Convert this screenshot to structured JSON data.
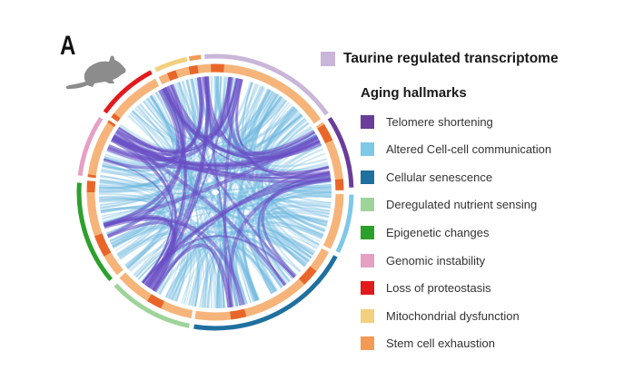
{
  "panel_label": "A",
  "mouse_icon": "mouse-icon",
  "taurine": {
    "label": "Taurine regulated transcriptome",
    "color": "#c9b6d8"
  },
  "hallmarks": {
    "title": "Aging hallmarks",
    "items": [
      {
        "label": "Telomere shortening",
        "color": "#6a3d9a"
      },
      {
        "label": "Altered Cell-cell communication",
        "color": "#7ec8e8"
      },
      {
        "label": "Cellular senescence",
        "color": "#1f6f9f"
      },
      {
        "label": "Deregulated nutrient sensing",
        "color": "#9ed49a"
      },
      {
        "label": "Epigenetic changes",
        "color": "#2ca02c"
      },
      {
        "label": "Genomic instability",
        "color": "#e6a0c4"
      },
      {
        "label": "Loss of proteostasis",
        "color": "#e31a1c"
      },
      {
        "label": "Mitochondrial dysfunction",
        "color": "#f3cf7f"
      },
      {
        "label": "Stem cell exhaustion",
        "color": "#f39a55"
      }
    ]
  },
  "ring_colors": {
    "inner": "#f6b47a",
    "inner_highlight": "#e9662a",
    "chord_primary": "#6a4cc4",
    "chord_secondary": "#6cb8e0"
  }
}
